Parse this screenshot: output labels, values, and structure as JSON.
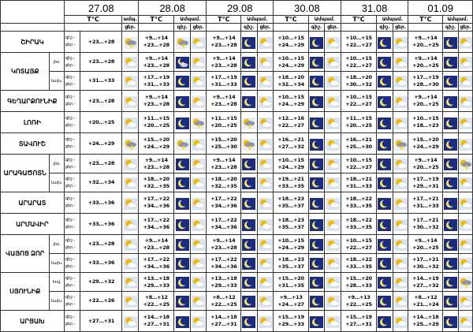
{
  "dates": [
    "27.08",
    "28.08",
    "29.08",
    "30.08",
    "31.08",
    "01.09"
  ],
  "header": {
    "temp_label": "T°C",
    "cloud_label": "Ամպամ.",
    "cloud_sub": "ամպ.",
    "day_short": "ցեր.",
    "night_short": "գիշ.",
    "night_day_labels": [
      "գիշ.-",
      "ցեր.-"
    ]
  },
  "regions": [
    {
      "name": "ՇԻՐԱԿ",
      "rows": [
        {
          "sub": "",
          "t27": "+23…+28",
          "t28": [
            "+9…+14",
            "+23…+28"
          ],
          "t29": [
            "+9…+14",
            "+23…+28"
          ],
          "t30": [
            "+10…+15",
            "+24…+29"
          ],
          "t31": [
            "+10…+15",
            "+22…+27"
          ],
          "t01": [
            "+9…+14",
            "+20…+25"
          ]
        }
      ]
    },
    {
      "name": "ԿՈՏԱՅՔ",
      "rows": [
        {
          "sub": "լեռ.",
          "t27": "+23…+28",
          "t28": [
            "+9…+14",
            "+23…+28"
          ],
          "t29": [
            "+9…+14",
            "+23…+28"
          ],
          "t30": [
            "+10…+15",
            "+24…+29"
          ],
          "t31": [
            "+10…+15",
            "+22…+27"
          ],
          "t01": [
            "+9…+14",
            "+20…+25"
          ]
        },
        {
          "sub": "նախ.",
          "t27": "+31…+33",
          "t28": [
            "+17…+19",
            "+31…+33"
          ],
          "t29": [
            "+17…+19",
            "+31…+33"
          ],
          "t30": [
            "+18…+20",
            "+32…+34"
          ],
          "t31": [
            "+18…+20",
            "+30…+32"
          ],
          "t01": [
            "+17…+19",
            "+28…+30"
          ]
        }
      ]
    },
    {
      "name": "ԳԵՂԱՐՔՈՒՆԻՔ",
      "rows": [
        {
          "sub": "",
          "t27": "+23…+28",
          "t28": [
            "+9…+14",
            "+23…+28"
          ],
          "t29": [
            "+9…+14",
            "+23…+28"
          ],
          "t30": [
            "+10…+15",
            "+24…+29"
          ],
          "t31": [
            "+10…+15",
            "+22…+27"
          ],
          "t01": [
            "+9…+14",
            "+20…+25"
          ]
        }
      ]
    },
    {
      "name": "ԼՈՌԻ",
      "rows": [
        {
          "sub": "",
          "t27": "+20…+25",
          "t28": [
            "+11…+15",
            "+20…+25"
          ],
          "t29": [
            "+11…+15",
            "+20…+25"
          ],
          "t30": [
            "+12…+16",
            "+22…+27"
          ],
          "t31": [
            "+11…+15",
            "+20…+25"
          ],
          "t01": [
            "+10…+15",
            "+18…+23"
          ]
        }
      ]
    },
    {
      "name": "ՏԱՎՈՒՇ",
      "rows": [
        {
          "sub": "",
          "t27": "+24…+29",
          "t28": [
            "+15…+20",
            "+24…+29"
          ],
          "t29": [
            "+15…+20",
            "+25…+30"
          ],
          "t30": [
            "+16…+21",
            "+27…+32"
          ],
          "t31": [
            "+16…+21",
            "+25…+30"
          ],
          "t01": [
            "+15…+20",
            "+24…+29"
          ]
        }
      ]
    },
    {
      "name": "ԱՐԱԳԱԾՈՏՆ",
      "rows": [
        {
          "sub": "լեռ.",
          "t27": "+23…+28",
          "t28": [
            "+9…+14",
            "+23…+28"
          ],
          "t29": [
            "+9…+14",
            "+23…+28"
          ],
          "t30": [
            "+10…+15",
            "+24…+29"
          ],
          "t31": [
            "+10…+15",
            "+22…+27"
          ],
          "t01": [
            "+9…+14",
            "+20…+25"
          ]
        },
        {
          "sub": "նախ.",
          "t27": "+32…+34",
          "t28": [
            "+18…+20",
            "+32…+35"
          ],
          "t29": [
            "+18…+20",
            "+32…+35"
          ],
          "t30": [
            "+19…+21",
            "+33…+35"
          ],
          "t31": [
            "+18…+21",
            "+31…+33"
          ],
          "t01": [
            "+17…+19",
            "+29…+31"
          ]
        }
      ]
    },
    {
      "name": "ԱՐԱՐԱՏ",
      "rows": [
        {
          "sub": "",
          "t27": "+33…+36",
          "t28": [
            "+17…+22",
            "+34…+36"
          ],
          "t29": [
            "+17…+22",
            "+34…+36"
          ],
          "t30": [
            "+18…+23",
            "+35…+37"
          ],
          "t31": [
            "+18…+22",
            "+33…+35"
          ],
          "t01": [
            "+17…+21",
            "+31…+33"
          ]
        }
      ]
    },
    {
      "name": "ԱՐՄԱՎԻՐ",
      "rows": [
        {
          "sub": "",
          "t27": "+33…+36",
          "t28": [
            "+17…+22",
            "+34…+36"
          ],
          "t29": [
            "+17…+22",
            "+34…+36"
          ],
          "t30": [
            "+18…+23",
            "+35…+37"
          ],
          "t31": [
            "+18…+22",
            "+33…+35"
          ],
          "t01": [
            "+17…+21",
            "+30…+32"
          ]
        }
      ]
    },
    {
      "name": "ՎԱՅՈՑ ՁՈՐ",
      "rows": [
        {
          "sub": "լեռ.",
          "t27": "+23…+28",
          "t28": [
            "+9…+14",
            "+23…+28"
          ],
          "t29": [
            "+9…+14",
            "+23…+28"
          ],
          "t30": [
            "+10…+15",
            "+24…+29"
          ],
          "t31": [
            "+10…+15",
            "+22…+27"
          ],
          "t01": [
            "+9…+14",
            "+20…+25"
          ]
        },
        {
          "sub": "նախ.",
          "t27": "+33…+36",
          "t28": [
            "+17…+22",
            "+34…+36"
          ],
          "t29": [
            "+17…+22",
            "+34…+36"
          ],
          "t30": [
            "+18…+23",
            "+35…+37"
          ],
          "t31": [
            "+18…+22",
            "+33…+35"
          ],
          "t01": [
            "+17…+21",
            "+30…+32"
          ]
        }
      ]
    },
    {
      "name": "ՍՅՈՒՆԻՔ",
      "rows": [
        {
          "sub": "հով.",
          "t27": "+29…+32",
          "t28": [
            "+13…+18",
            "+29…+33"
          ],
          "t29": [
            "+13…+18",
            "+29…+33"
          ],
          "t30": [
            "+15…+20",
            "+31…+35"
          ],
          "t31": [
            "+15…+20",
            "+28…+33"
          ],
          "t01": [
            "+14…+19",
            "+27…+32"
          ]
        },
        {
          "sub": "նախ.",
          "t27": "+22…+26",
          "t28": [
            "+8…+12",
            "+22…+25"
          ],
          "t29": [
            "+8…+12",
            "+22…+25"
          ],
          "t30": [
            "+9…+13",
            "+24…+27"
          ],
          "t31": [
            "+9…+13",
            "+22…+25"
          ],
          "t01": [
            "+8…+12",
            "+21…+24"
          ]
        }
      ]
    },
    {
      "name": "ԱՐՑԱԽ",
      "rows": [
        {
          "sub": "",
          "t27": "+27…+31",
          "t28": [
            "+14…+18",
            "+27…+31"
          ],
          "t29": [
            "+14…+18",
            "+27…+31"
          ],
          "t30": [
            "+15…+19",
            "+29…+33"
          ],
          "t31": [
            "+15…+19",
            "+27…+31"
          ],
          "t01": [
            "+14…+18",
            "+25…+29"
          ]
        }
      ]
    }
  ],
  "icon_names": [
    "partly-cloudy-day-icon",
    "moon-icon",
    "moon-cloud-icon",
    "thunderstorm-icon",
    "rain-cloud-icon"
  ],
  "colors": {
    "night_bg": "#1b2c80",
    "day_bg": "#dbe4f2",
    "sun": "#f3b900",
    "moon": "#f4e36a"
  }
}
